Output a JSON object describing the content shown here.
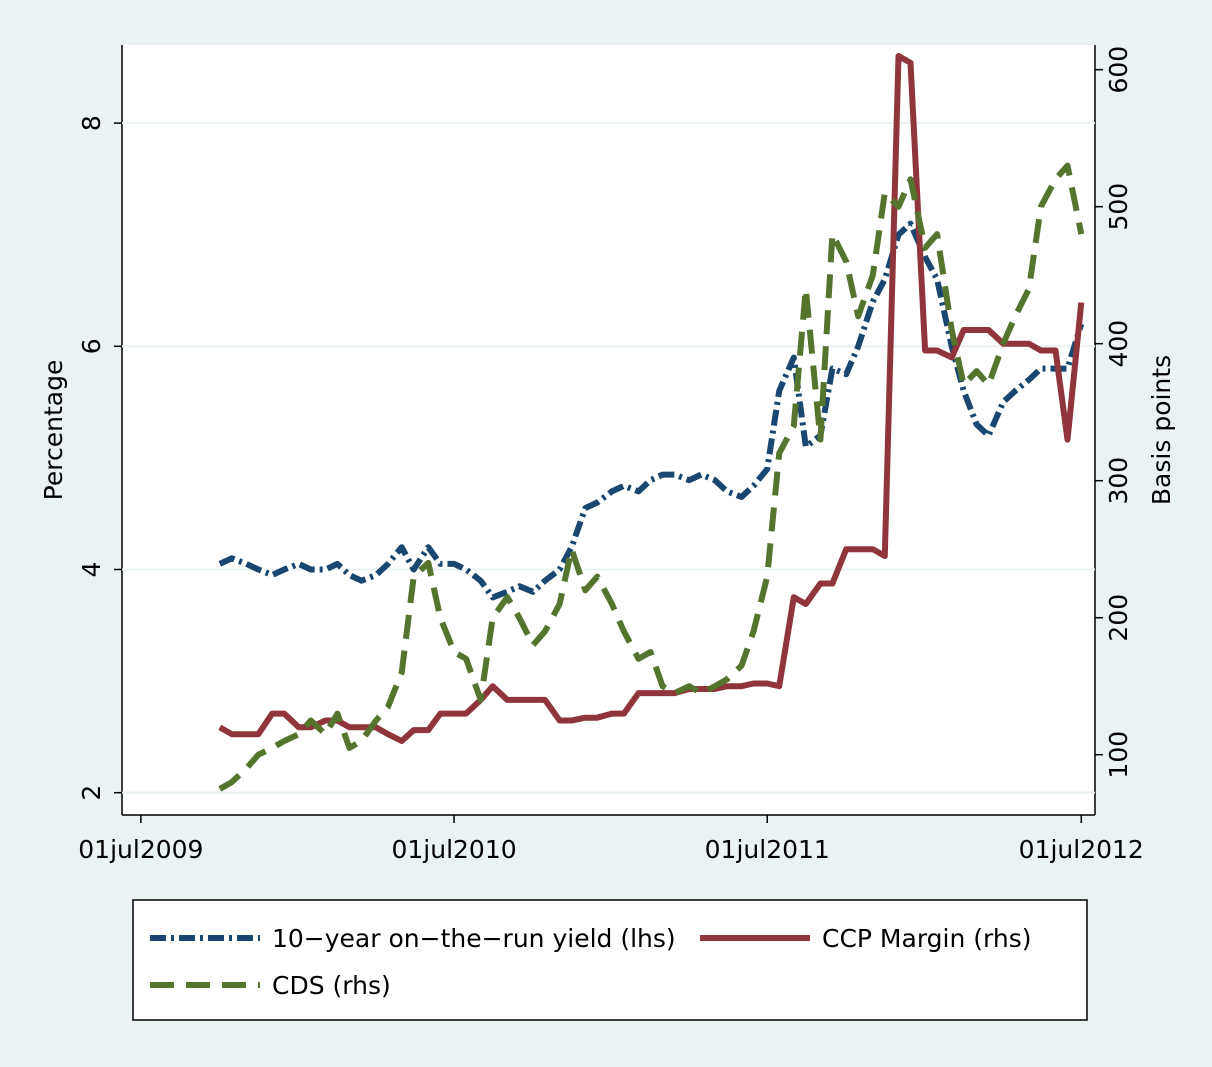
{
  "chart_data": {
    "type": "line",
    "y_label": "Percentage",
    "y2_label": "Basis points",
    "x": [
      "2009-10-01",
      "2009-10-15",
      "2009-11-01",
      "2009-11-15",
      "2009-12-01",
      "2009-12-15",
      "2010-01-01",
      "2010-01-15",
      "2010-02-01",
      "2010-02-15",
      "2010-03-01",
      "2010-03-15",
      "2010-04-01",
      "2010-04-15",
      "2010-05-01",
      "2010-05-15",
      "2010-06-01",
      "2010-06-15",
      "2010-07-01",
      "2010-07-15",
      "2010-08-01",
      "2010-08-15",
      "2010-09-01",
      "2010-09-15",
      "2010-10-01",
      "2010-10-15",
      "2010-11-01",
      "2010-11-15",
      "2010-12-01",
      "2010-12-15",
      "2011-01-01",
      "2011-01-15",
      "2011-02-01",
      "2011-02-15",
      "2011-03-01",
      "2011-03-15",
      "2011-04-01",
      "2011-04-15",
      "2011-05-01",
      "2011-05-15",
      "2011-06-01",
      "2011-06-15",
      "2011-07-01",
      "2011-07-15",
      "2011-08-01",
      "2011-08-15",
      "2011-09-01",
      "2011-09-15",
      "2011-10-01",
      "2011-10-15",
      "2011-11-01",
      "2011-11-15",
      "2011-12-01",
      "2011-12-15",
      "2012-01-01",
      "2012-01-15",
      "2012-02-01",
      "2012-02-15",
      "2012-03-01",
      "2012-03-15",
      "2012-04-01",
      "2012-04-15",
      "2012-05-01",
      "2012-05-15",
      "2012-06-01",
      "2012-06-15",
      "2012-07-01"
    ],
    "series": [
      {
        "name": "10−year on−the−run yield (lhs)",
        "color": "#1a476f",
        "dash": "16 5 3 5",
        "axis": "y",
        "values": [
          4.05,
          4.1,
          4.05,
          4.0,
          3.95,
          4.0,
          4.05,
          4.0,
          4.0,
          4.05,
          3.95,
          3.9,
          3.95,
          4.05,
          4.2,
          4.0,
          4.2,
          4.05,
          4.05,
          4.0,
          3.9,
          3.75,
          3.8,
          3.85,
          3.8,
          3.9,
          4.0,
          4.2,
          4.55,
          4.6,
          4.7,
          4.75,
          4.7,
          4.8,
          4.85,
          4.85,
          4.8,
          4.85,
          4.8,
          4.7,
          4.65,
          4.75,
          4.9,
          5.6,
          5.9,
          5.1,
          5.2,
          5.8,
          5.75,
          6.0,
          6.4,
          6.6,
          7.0,
          7.1,
          6.8,
          6.6,
          6.0,
          5.6,
          5.3,
          5.2,
          5.5,
          5.6,
          5.7,
          5.8,
          5.8,
          5.8,
          6.2
        ]
      },
      {
        "name": "CCP Margin (rhs)",
        "color": "#90353b",
        "dash": "none",
        "axis": "y2",
        "values": [
          120,
          115,
          115,
          115,
          130,
          130,
          120,
          120,
          125,
          125,
          120,
          120,
          120,
          115,
          110,
          118,
          118,
          130,
          130,
          130,
          140,
          150,
          140,
          140,
          140,
          140,
          125,
          125,
          127,
          127,
          130,
          130,
          145,
          145,
          145,
          145,
          148,
          148,
          148,
          150,
          150,
          152,
          152,
          150,
          215,
          210,
          225,
          225,
          250,
          250,
          250,
          245,
          610,
          605,
          395,
          395,
          390,
          410,
          410,
          410,
          400,
          400,
          400,
          395,
          395,
          330,
          430
        ]
      },
      {
        "name": "CDS (rhs)",
        "color": "#55752f",
        "dash": "24 12",
        "axis": "y2",
        "values": [
          75,
          80,
          90,
          100,
          105,
          110,
          115,
          125,
          115,
          130,
          105,
          110,
          125,
          135,
          160,
          230,
          240,
          200,
          175,
          170,
          140,
          200,
          215,
          200,
          180,
          190,
          210,
          250,
          220,
          230,
          210,
          190,
          170,
          175,
          150,
          145,
          150,
          145,
          150,
          155,
          165,
          190,
          230,
          320,
          340,
          440,
          330,
          480,
          460,
          420,
          450,
          510,
          500,
          520,
          470,
          480,
          410,
          370,
          380,
          370,
          400,
          420,
          440,
          500,
          520,
          530,
          480
        ]
      }
    ],
    "xlim": [
      "2009-06-09",
      "2012-07-17"
    ],
    "xticks": [
      {
        "value": "2009-07-01",
        "label": "01jul2009"
      },
      {
        "value": "2010-07-01",
        "label": "01jul2010"
      },
      {
        "value": "2011-07-01",
        "label": "01jul2011"
      },
      {
        "value": "2012-07-01",
        "label": "01jul2012"
      }
    ],
    "ylim": [
      1.8,
      8.7
    ],
    "yticks": [
      2,
      4,
      6,
      8
    ],
    "y2lim": [
      56,
      618
    ],
    "y2ticks": [
      100,
      200,
      300,
      400,
      500,
      600
    ],
    "grid": true
  }
}
